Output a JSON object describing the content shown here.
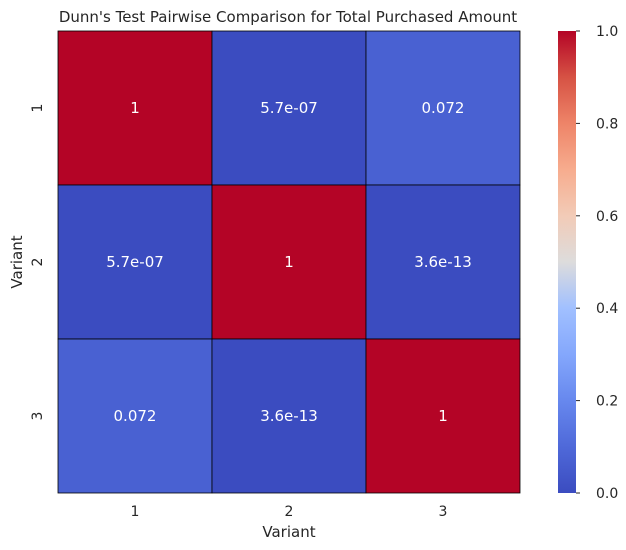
{
  "chart_data": {
    "type": "heatmap",
    "title": "Dunn's Test Pairwise Comparison for Total Purchased Amount",
    "xlabel": "Variant",
    "ylabel": "Variant",
    "x_categories": [
      "1",
      "2",
      "3"
    ],
    "y_categories": [
      "1",
      "2",
      "3"
    ],
    "values": [
      [
        1.0,
        5.7e-07,
        0.072
      ],
      [
        5.7e-07,
        1.0,
        3.6e-13
      ],
      [
        0.072,
        3.6e-13,
        1.0
      ]
    ],
    "annotations": [
      [
        "1",
        "5.7e-07",
        "0.072"
      ],
      [
        "5.7e-07",
        "1",
        "3.6e-13"
      ],
      [
        "0.072",
        "3.6e-13",
        "1"
      ]
    ],
    "colormap": "coolwarm",
    "vmin": 0.0,
    "vmax": 1.0,
    "colorbar_ticks": [
      "0.0",
      "0.2",
      "0.4",
      "0.6",
      "0.8",
      "1.0"
    ],
    "colorbar_tick_values": [
      0.0,
      0.2,
      0.4,
      0.6,
      0.8,
      1.0
    ],
    "colors": {
      "low": "#3b4cc0",
      "mid": "#dddddd",
      "high": "#b40426",
      "annotation_text": "#ffffff",
      "cell_border": "#000000"
    }
  }
}
